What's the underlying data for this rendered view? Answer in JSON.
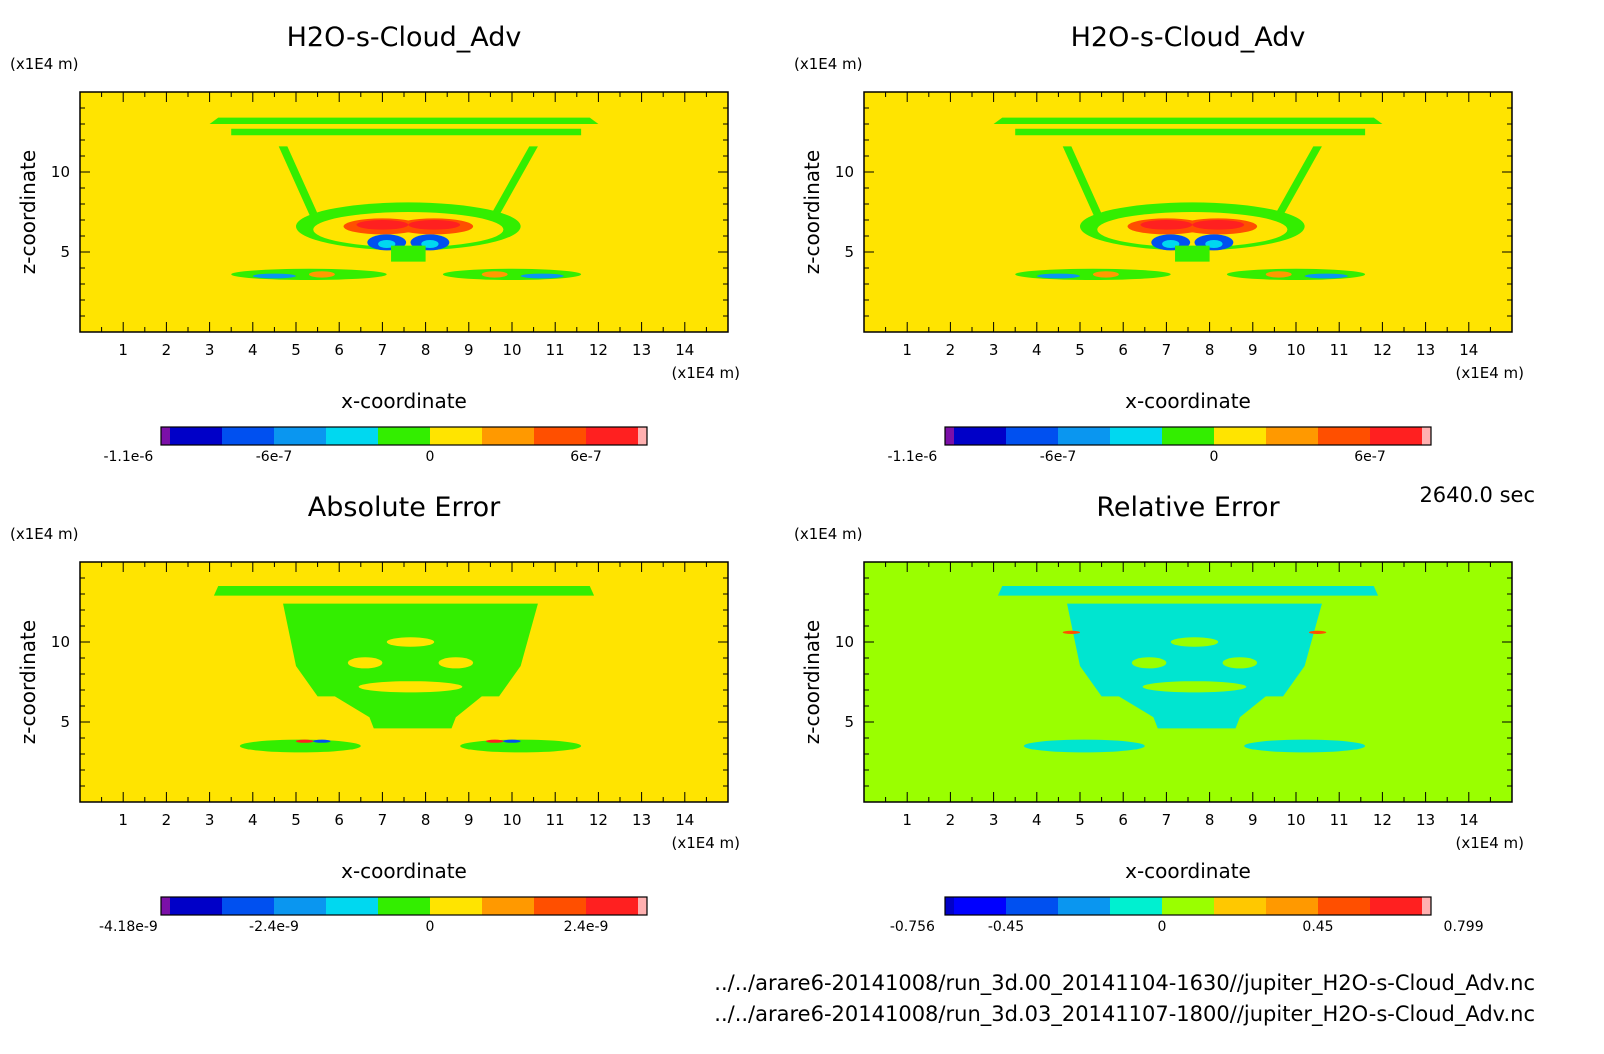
{
  "header": {
    "time_label": "2640.0 sec"
  },
  "files": [
    "../../arare6-20141008/run_3d.00_20141104-1630//jupiter_H2O-s-Cloud_Adv.nc",
    "../../arare6-20141008/run_3d.03_20141107-1800//jupiter_H2O-s-Cloud_Adv.nc"
  ],
  "colors": {
    "field_yellow": "#ffe400",
    "field_lime": "#9aff00",
    "green": "#33ee00",
    "cyan": "#00e5d0"
  },
  "chart_data": [
    {
      "type": "heatmap",
      "title": "H2O-s-Cloud_Adv",
      "xlabel": "x-coordinate",
      "ylabel": "z-coordinate",
      "x_unit": "(x1E4 m)",
      "y_unit": "(x1E4 m)",
      "xlim": [
        0,
        15
      ],
      "ylim": [
        0,
        15
      ],
      "x_ticks": [
        "1",
        "2",
        "3",
        "4",
        "5",
        "6",
        "7",
        "8",
        "9",
        "10",
        "11",
        "12",
        "13",
        "14"
      ],
      "y_ticks": [
        "5",
        "10"
      ],
      "background": "#ffe400",
      "colorbar": {
        "colors": [
          "#7b0fa8",
          "#0000c8",
          "#0050f0",
          "#0a96f0",
          "#00d8f0",
          "#33ee00",
          "#ffe400",
          "#ff9900",
          "#ff4f00",
          "#ff2020",
          "#ffb0b0"
        ],
        "tick_labels": [
          "-1.1e-6",
          "-6e-7",
          "0",
          "6e-7"
        ]
      }
    },
    {
      "type": "heatmap",
      "title": "H2O-s-Cloud_Adv",
      "xlabel": "x-coordinate",
      "ylabel": "z-coordinate",
      "x_unit": "(x1E4 m)",
      "y_unit": "(x1E4 m)",
      "xlim": [
        0,
        15
      ],
      "ylim": [
        0,
        15
      ],
      "x_ticks": [
        "1",
        "2",
        "3",
        "4",
        "5",
        "6",
        "7",
        "8",
        "9",
        "10",
        "11",
        "12",
        "13",
        "14"
      ],
      "y_ticks": [
        "5",
        "10"
      ],
      "background": "#ffe400",
      "colorbar": {
        "colors": [
          "#7b0fa8",
          "#0000c8",
          "#0050f0",
          "#0a96f0",
          "#00d8f0",
          "#33ee00",
          "#ffe400",
          "#ff9900",
          "#ff4f00",
          "#ff2020",
          "#ffb0b0"
        ],
        "tick_labels": [
          "-1.1e-6",
          "-6e-7",
          "0",
          "6e-7"
        ]
      }
    },
    {
      "type": "heatmap",
      "title": "Absolute Error",
      "xlabel": "x-coordinate",
      "ylabel": "z-coordinate",
      "x_unit": "(x1E4 m)",
      "y_unit": "(x1E4 m)",
      "xlim": [
        0,
        15
      ],
      "ylim": [
        0,
        15
      ],
      "x_ticks": [
        "1",
        "2",
        "3",
        "4",
        "5",
        "6",
        "7",
        "8",
        "9",
        "10",
        "11",
        "12",
        "13",
        "14"
      ],
      "y_ticks": [
        "5",
        "10"
      ],
      "background": "#ffe400",
      "colorbar": {
        "colors": [
          "#7b0fa8",
          "#0000c8",
          "#0050f0",
          "#0a96f0",
          "#00d8f0",
          "#33ee00",
          "#ffe400",
          "#ff9900",
          "#ff4f00",
          "#ff2020",
          "#ffb0b0"
        ],
        "tick_labels": [
          "-4.18e-9",
          "-2.4e-9",
          "0",
          "2.4e-9"
        ]
      }
    },
    {
      "type": "heatmap",
      "title": "Relative Error",
      "xlabel": "x-coordinate",
      "ylabel": "z-coordinate",
      "x_unit": "(x1E4 m)",
      "y_unit": "(x1E4 m)",
      "xlim": [
        0,
        15
      ],
      "ylim": [
        0,
        15
      ],
      "x_ticks": [
        "1",
        "2",
        "3",
        "4",
        "5",
        "6",
        "7",
        "8",
        "9",
        "10",
        "11",
        "12",
        "13",
        "14"
      ],
      "y_ticks": [
        "5",
        "10"
      ],
      "background": "#9aff00",
      "colorbar": {
        "colors": [
          "#0000c8",
          "#0000ff",
          "#0050f0",
          "#0a96f0",
          "#00f0d0",
          "#9aff00",
          "#ffc800",
          "#ff9900",
          "#ff4f00",
          "#ff2020",
          "#ffb0b0"
        ],
        "tick_labels": [
          "-0.756",
          "-0.45",
          "0",
          "0.45",
          "0.799"
        ]
      }
    }
  ]
}
